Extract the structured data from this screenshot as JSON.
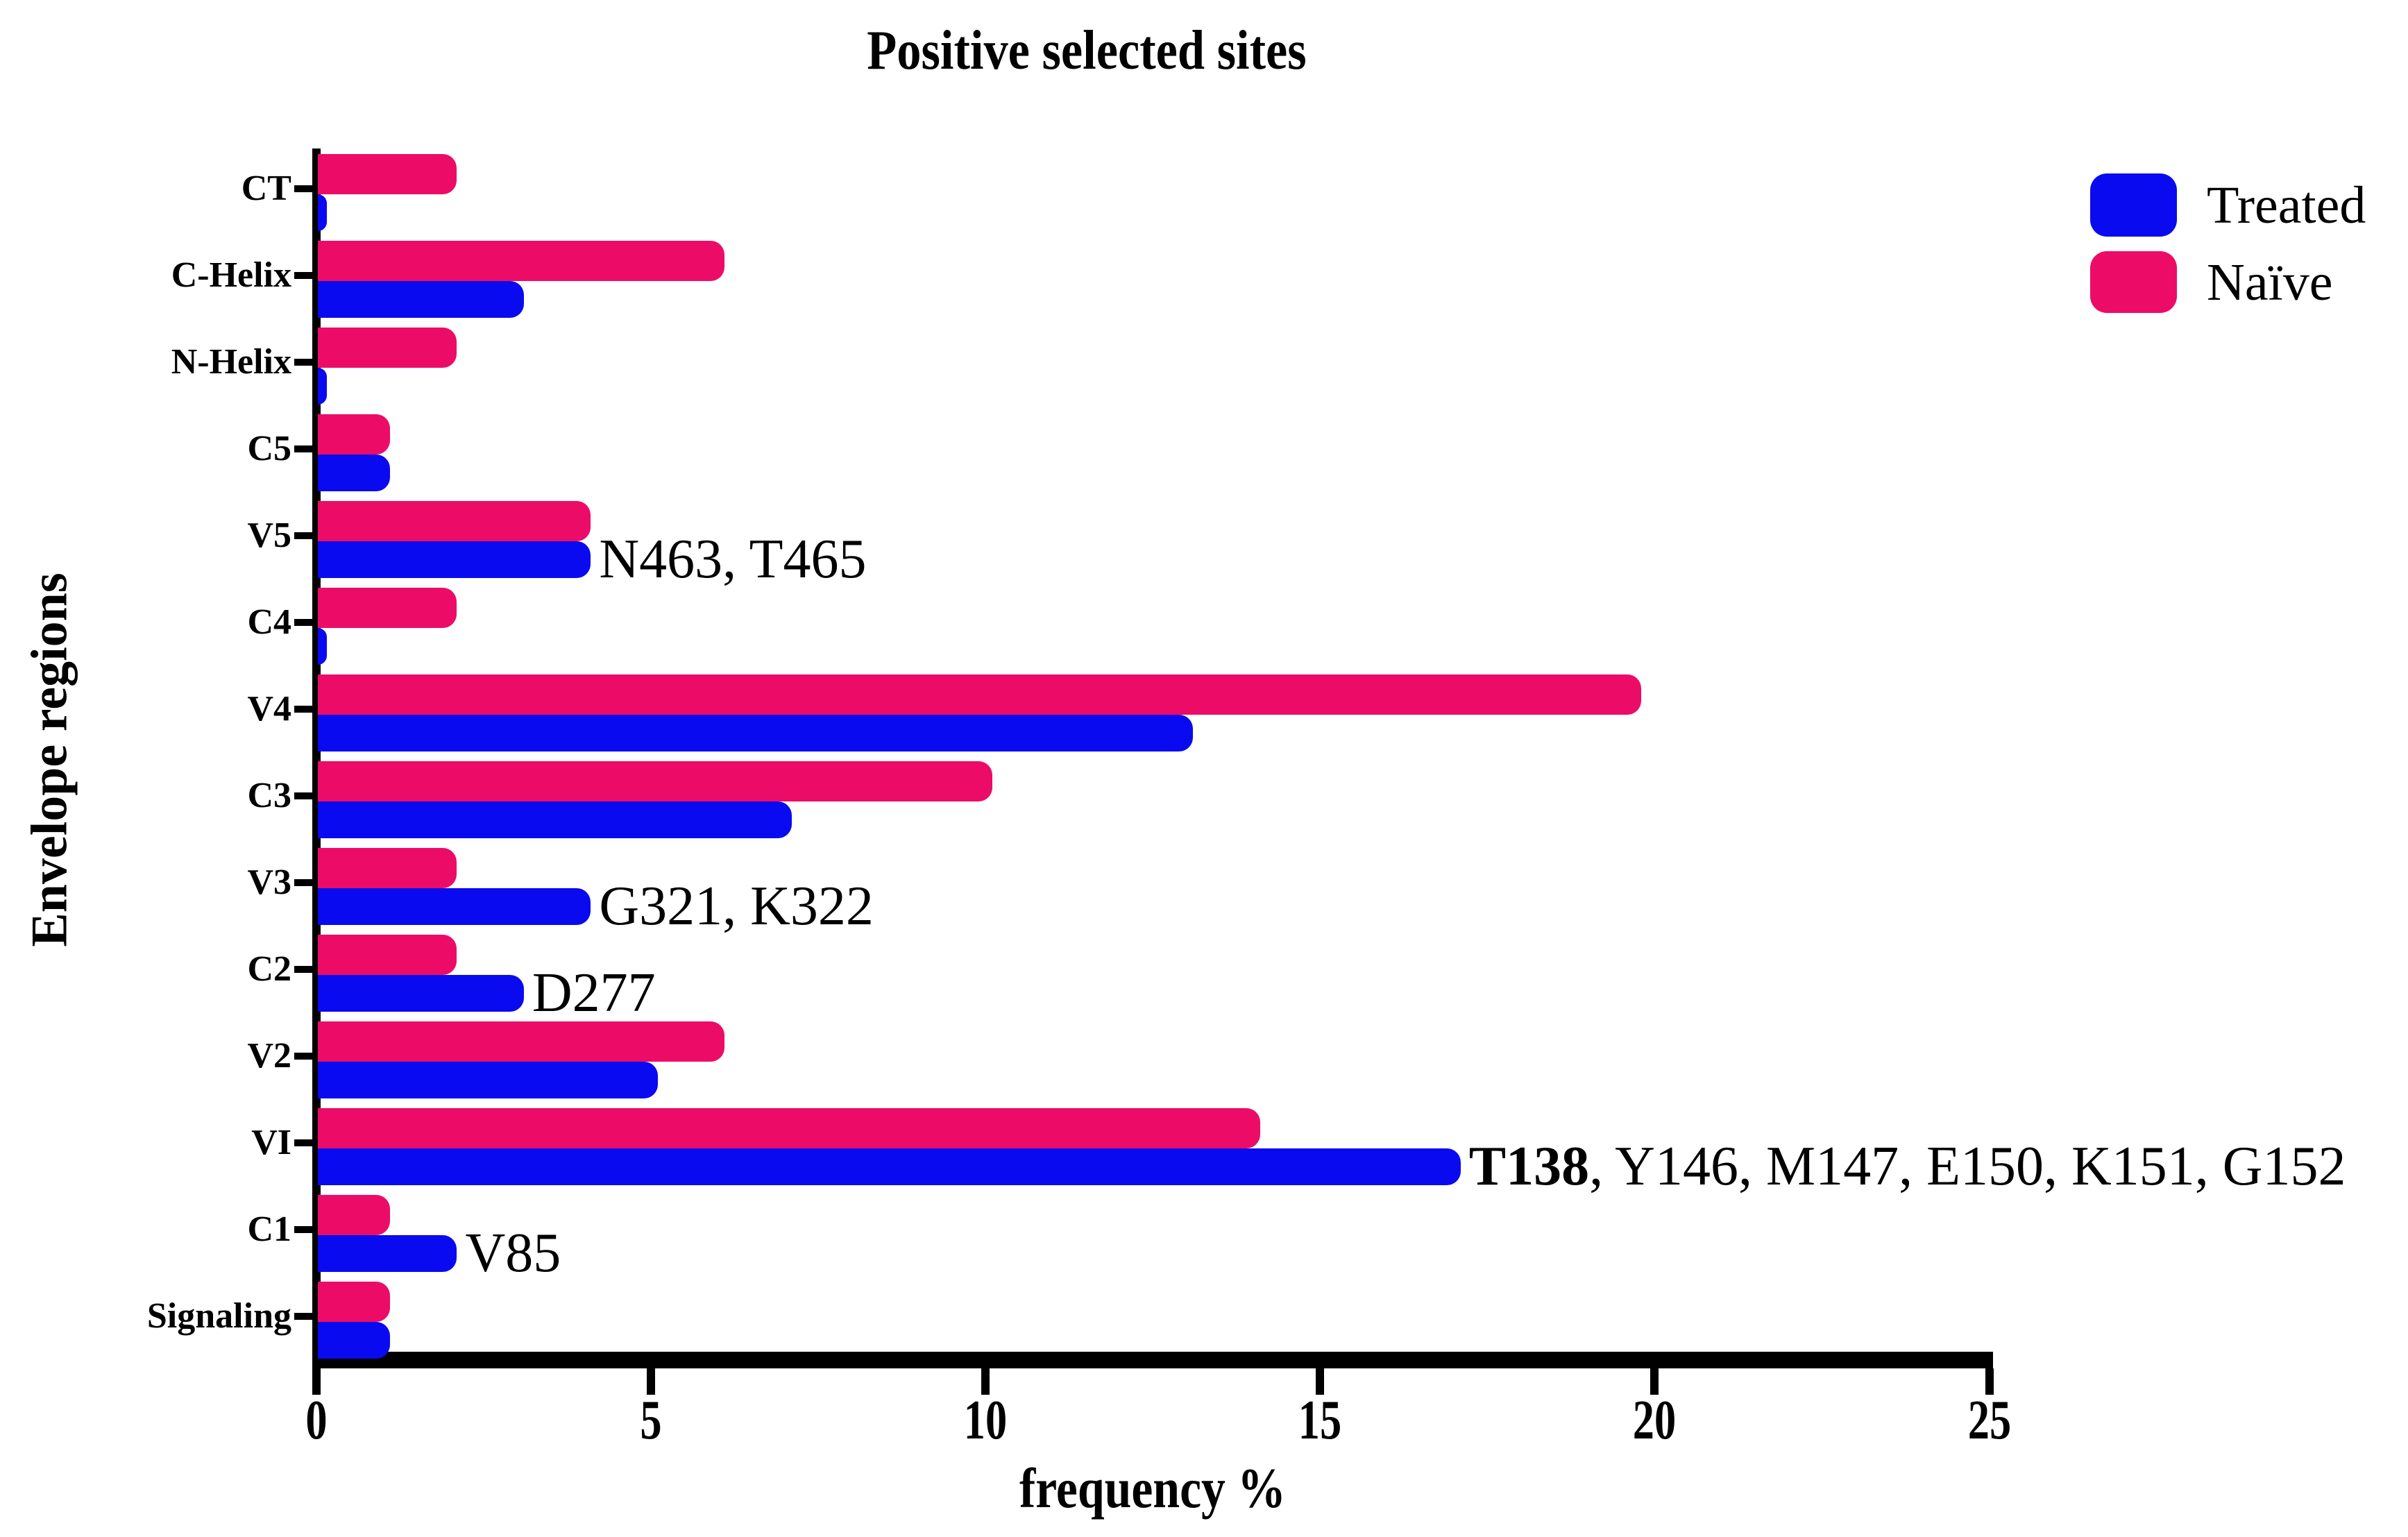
{
  "chart_data": {
    "type": "bar",
    "orientation": "horizontal",
    "title": "Positive selected sites",
    "xlabel": "frequency %",
    "ylabel": "Envelope regions",
    "xlim": [
      0,
      25
    ],
    "xticks": [
      0,
      5,
      10,
      15,
      20,
      25
    ],
    "grid": false,
    "legend_position": "top-right",
    "legend": [
      {
        "name": "Treated",
        "color": "#0A0AF0"
      },
      {
        "name": "Naïve",
        "color": "#EC0C67"
      }
    ],
    "categories": [
      "CT",
      "C-Helix",
      "N-Helix",
      "C5",
      "V5",
      "C4",
      "V4",
      "C3",
      "V3",
      "C2",
      "V2",
      "VI",
      "C1",
      "Signaling"
    ],
    "series": [
      {
        "name": "Naïve",
        "color": "#EC0C67",
        "values": [
          2.1,
          6.1,
          2.1,
          1.1,
          4.1,
          2.1,
          19.8,
          10.1,
          2.1,
          2.1,
          6.1,
          14.1,
          1.1,
          1.1
        ]
      },
      {
        "name": "Treated",
        "color": "#0A0AF0",
        "values": [
          0.16,
          3.1,
          0.16,
          1.1,
          4.1,
          0.16,
          13.1,
          7.1,
          4.1,
          3.1,
          5.1,
          17.1,
          2.1,
          1.1
        ]
      }
    ],
    "annotations": [
      {
        "category": "V5",
        "bold": "",
        "text": "N463, T465"
      },
      {
        "category": "V3",
        "bold": "",
        "text": "G321, K322"
      },
      {
        "category": "C2",
        "bold": "",
        "text": "D277"
      },
      {
        "category": "VI",
        "bold": "T138",
        "text": ", Y146, M147, E150, K151, G152"
      },
      {
        "category": "C1",
        "bold": "",
        "text": "V85"
      }
    ]
  }
}
